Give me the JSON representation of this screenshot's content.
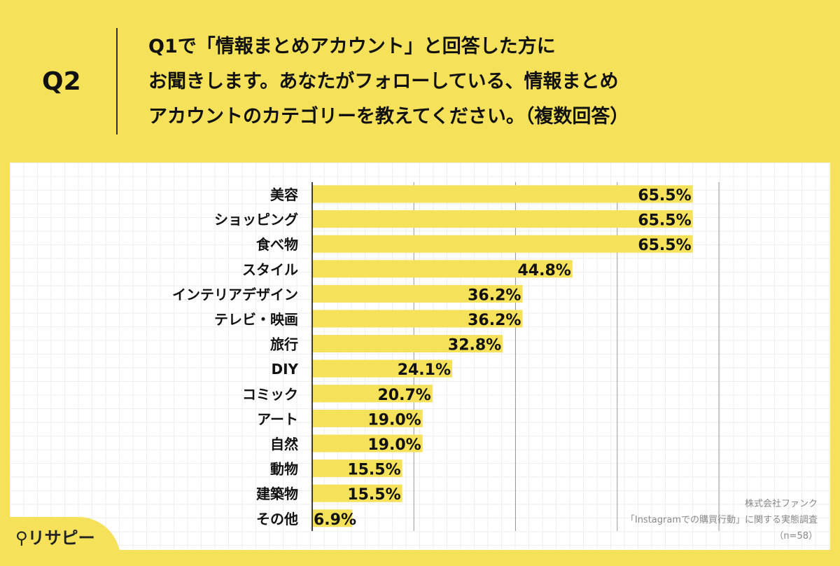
{
  "question_label": "Q2",
  "question_text": "Q1で「情報まとめアカウント」と回答した方に\nお聞きします。あなたがフォローしている、情報まとめ\nアカウントのカテゴリーを教えてください。（複数回答）",
  "source": {
    "company": "株式会社ファンク",
    "survey": "「Instagramでの購買行動」に関する実態調査",
    "n": "（n=58）"
  },
  "logo": "リサピー",
  "colors": {
    "bar": "#F5E15A",
    "background": "#F5E15A"
  },
  "chart_data": {
    "type": "bar",
    "orientation": "horizontal",
    "xlim": [
      0,
      70
    ],
    "grid": true,
    "categories": [
      "美容",
      "ショッピング",
      "食べ物",
      "スタイル",
      "インテリアデザイン",
      "テレビ・映画",
      "旅行",
      "DIY",
      "コミック",
      "アート",
      "自然",
      "動物",
      "建築物",
      "その他"
    ],
    "values": [
      65.5,
      65.5,
      65.5,
      44.8,
      36.2,
      36.2,
      32.8,
      24.1,
      20.7,
      19.0,
      19.0,
      15.5,
      15.5,
      6.9
    ],
    "labels": [
      "65.5%",
      "65.5%",
      "65.5%",
      "44.8%",
      "36.2%",
      "36.2%",
      "32.8%",
      "24.1%",
      "20.7%",
      "19.0%",
      "19.0%",
      "15.5%",
      "15.5%",
      "6.9%"
    ]
  }
}
